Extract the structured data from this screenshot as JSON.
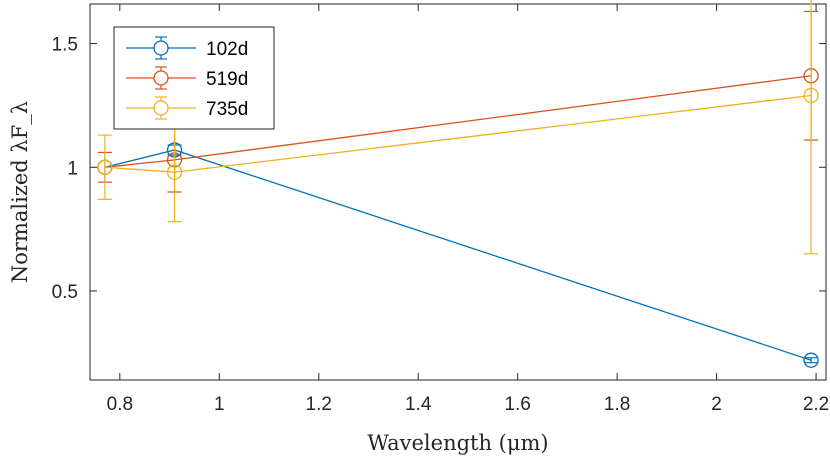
{
  "chart_data": {
    "type": "line",
    "title": "",
    "xlabel": "Wavelength (μm)",
    "ylabel": "Normalized λF_λ",
    "xlim": [
      0.74,
      2.22
    ],
    "ylim": [
      0.14,
      1.66
    ],
    "xticks": [
      0.8,
      1,
      1.2,
      1.4,
      1.6,
      1.8,
      2,
      2.2
    ],
    "xtick_labels": [
      "0.8",
      "1",
      "1.2",
      "1.4",
      "1.6",
      "1.8",
      "2",
      "2.2"
    ],
    "yticks": [
      0.5,
      1,
      1.5
    ],
    "ytick_labels": [
      "0.5",
      "1",
      "1.5"
    ],
    "grid": false,
    "legend_position": "top-left",
    "series": [
      {
        "name": "102d",
        "color": "#0072BD",
        "x": [
          0.77,
          0.91,
          2.19
        ],
        "y": [
          1.0,
          1.07,
          0.22
        ],
        "err": [
          0.0,
          0.02,
          0.01
        ]
      },
      {
        "name": "519d",
        "color": "#D95319",
        "x": [
          0.77,
          0.91,
          2.19
        ],
        "y": [
          1.0,
          1.03,
          1.37
        ],
        "err": [
          0.06,
          0.13,
          0.26
        ]
      },
      {
        "name": "735d",
        "color": "#EDB120",
        "x": [
          0.77,
          0.91,
          2.19
        ],
        "y": [
          1.0,
          0.98,
          1.29
        ],
        "err": [
          0.13,
          0.2,
          0.64
        ]
      }
    ]
  }
}
